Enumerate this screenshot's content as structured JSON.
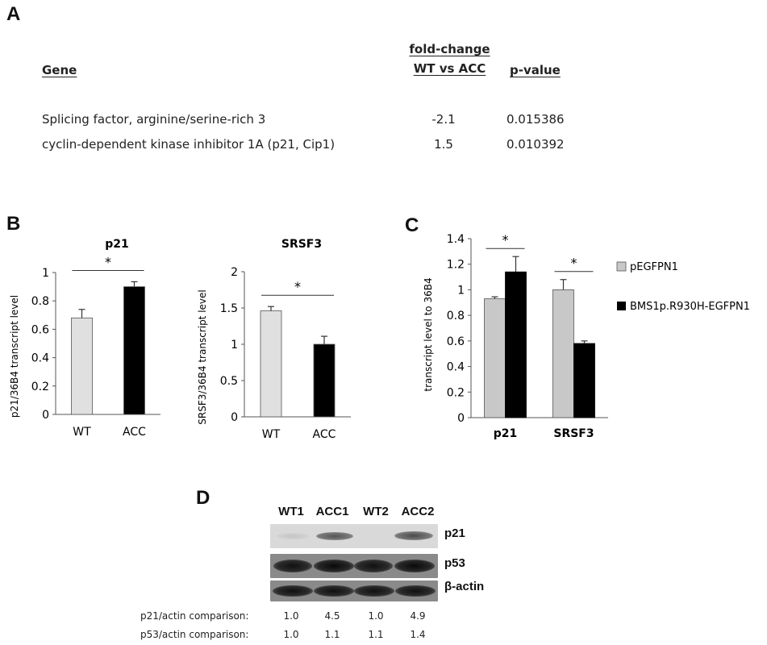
{
  "panels": {
    "a": "A",
    "b": "B",
    "c": "C",
    "d": "D"
  },
  "table_a": {
    "headers": {
      "gene": "Gene",
      "fold_line1": "fold-change",
      "fold_line2": "WT vs ACC",
      "pvalue": "p-value"
    },
    "rows": [
      {
        "gene": "Splicing factor, arginine/serine-rich 3",
        "fold": "-2.1",
        "p": "0.015386"
      },
      {
        "gene": "cyclin-dependent kinase inhibitor 1A (p21, Cip1)",
        "fold": "1.5",
        "p": "0.010392"
      }
    ]
  },
  "colors": {
    "light_bar": "#e0e0e0",
    "dark_bar": "#000000",
    "light_bar_c": "#c8c8c8"
  },
  "chart_data": [
    {
      "type": "bar",
      "title": "p21",
      "ylabel": "p21/36B4 transcript level",
      "categories": [
        "WT",
        "ACC"
      ],
      "values": [
        0.68,
        0.9
      ],
      "errors": [
        0.06,
        0.035
      ],
      "ylim": [
        0,
        1
      ],
      "yticks": [
        "0",
        "0.2",
        "0.4",
        "0.6",
        "0.8",
        "1"
      ],
      "significance": "*"
    },
    {
      "type": "bar",
      "title": "SRSF3",
      "ylabel": "SRSF3/36B4 transcript level",
      "categories": [
        "WT",
        "ACC"
      ],
      "values": [
        1.46,
        1.0
      ],
      "errors": [
        0.06,
        0.11
      ],
      "ylim": [
        0,
        2
      ],
      "yticks": [
        "0",
        "0.5",
        "1",
        "1.5",
        "2"
      ],
      "significance": "*"
    },
    {
      "type": "bar",
      "ylabel": "transcript level to 36B4",
      "categories": [
        "p21",
        "SRSF3"
      ],
      "series": [
        {
          "name": "pEGFPN1",
          "values": [
            0.93,
            1.0
          ],
          "errors": [
            0.015,
            0.08
          ]
        },
        {
          "name": "BMS1p.R930H-EGFPN1",
          "values": [
            1.14,
            0.58
          ],
          "errors": [
            0.12,
            0.02
          ]
        }
      ],
      "ylim": [
        0,
        1.4
      ],
      "yticks": [
        "0",
        "0.2",
        "0.4",
        "0.6",
        "0.8",
        "1",
        "1.2",
        "1.4"
      ],
      "legend": "right",
      "significance": "*"
    }
  ],
  "blot": {
    "lanes": [
      "WT1",
      "ACC1",
      "WT2",
      "ACC2"
    ],
    "rows": [
      {
        "label": "p21",
        "intensity": [
          0.05,
          0.6,
          0.0,
          0.65
        ]
      },
      {
        "label": "p53",
        "intensity": [
          0.9,
          0.95,
          0.9,
          0.95
        ]
      },
      {
        "label": "β-actin",
        "intensity": [
          0.95,
          0.95,
          0.95,
          0.95
        ]
      }
    ],
    "comparisons": [
      {
        "label": "p21/actin comparison:",
        "values": [
          "1.0",
          "4.5",
          "1.0",
          "4.9"
        ]
      },
      {
        "label": "p53/actin comparison:",
        "values": [
          "1.0",
          "1.1",
          "1.1",
          "1.4"
        ]
      }
    ]
  }
}
